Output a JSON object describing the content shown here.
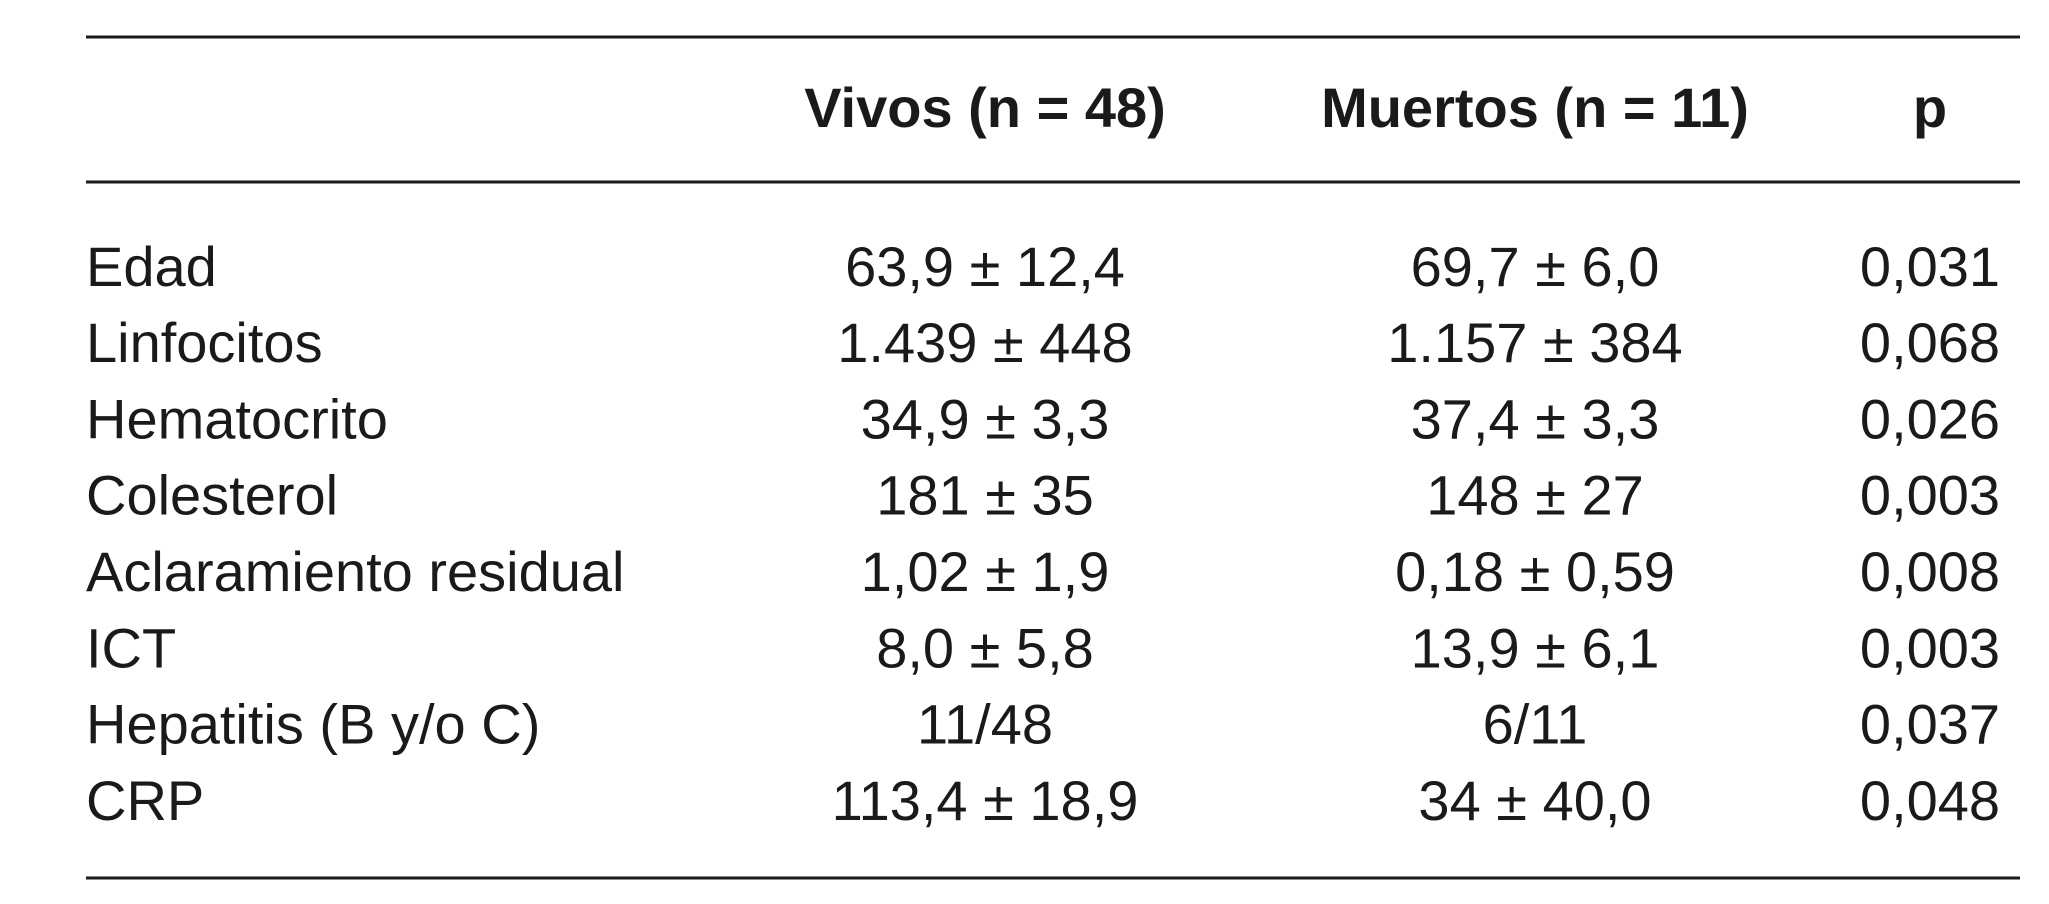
{
  "table": {
    "header": [
      "Vivos (n = 48)",
      "Muertos (n = 11)",
      "p"
    ],
    "rows": [
      [
        "Edad",
        "63,9 ± 12,4",
        "69,7 ± 6,0",
        "0,031"
      ],
      [
        "Linfocitos",
        "1.439 ± 448",
        "1.157 ± 384",
        "0,068"
      ],
      [
        "Hematocrito",
        "34,9 ± 3,3",
        "37,4 ± 3,3",
        "0,026"
      ],
      [
        "Colesterol",
        "181 ± 35",
        "148 ± 27",
        "0,003"
      ],
      [
        "Aclaramiento residual",
        "1,02 ± 1,9",
        "0,18 ± 0,59",
        "0,008"
      ],
      [
        "ICT",
        "8,0 ± 5,8",
        "13,9 ± 6,1",
        "0,003"
      ],
      [
        "Hepatitis (B y/o C)",
        "11/48",
        "6/11",
        "0,037"
      ],
      [
        "CRP",
        "113,4 ± 18,9",
        "34 ± 40,0",
        "0,048"
      ]
    ]
  }
}
